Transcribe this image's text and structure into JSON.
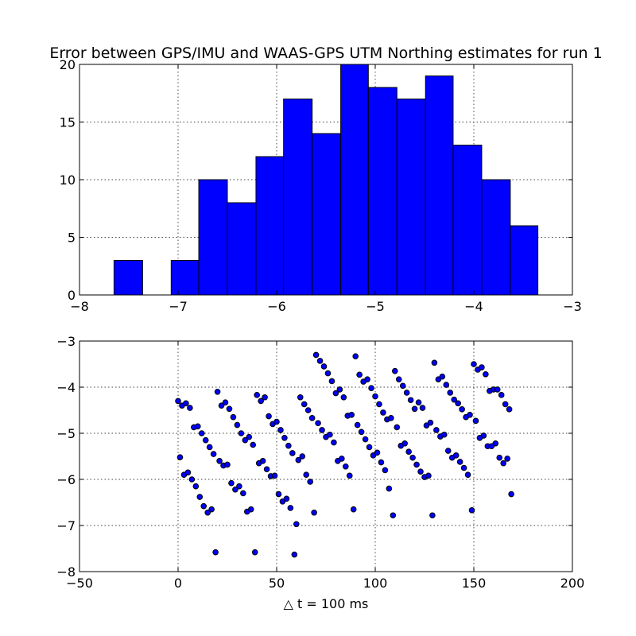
{
  "colors": {
    "accent": "#0000ff",
    "background": "#ffffff",
    "frame": "#000000"
  },
  "chart_data": [
    {
      "type": "bar",
      "title": "Error between GPS/IMU and WAAS-GPS UTM Northing estimates for run 1",
      "xlabel": "",
      "ylabel": "",
      "xlim": [
        -8,
        -3
      ],
      "ylim": [
        0,
        20
      ],
      "xticks": [
        "−8",
        "−7",
        "−6",
        "−5",
        "−4",
        "−3"
      ],
      "yticks": [
        "0",
        "5",
        "10",
        "15",
        "20"
      ],
      "grid": true,
      "bin_edges": [
        -7.65,
        -7.36,
        -7.07,
        -6.79,
        -6.5,
        -6.21,
        -5.93,
        -5.64,
        -5.35,
        -5.07,
        -4.78,
        -4.49,
        -4.21,
        -3.92,
        -3.63,
        -3.35
      ],
      "values": [
        3,
        0,
        3,
        10,
        8,
        12,
        17,
        14,
        20,
        18,
        17,
        19,
        13,
        10,
        6
      ]
    },
    {
      "type": "scatter",
      "title": "",
      "xlabel": "△ t = 100 ms",
      "ylabel": "",
      "xlim": [
        -50,
        200
      ],
      "ylim": [
        -8,
        -3
      ],
      "xticks": [
        "−50",
        "0",
        "50",
        "100",
        "150",
        "200"
      ],
      "yticks": [
        "−8",
        "−7",
        "−6",
        "−5",
        "−4",
        "−3"
      ],
      "grid": true,
      "points": [
        [
          0,
          -4.3
        ],
        [
          1,
          -5.52
        ],
        [
          2,
          -4.4
        ],
        [
          3,
          -5.9
        ],
        [
          4,
          -4.35
        ],
        [
          5,
          -5.85
        ],
        [
          6,
          -4.45
        ],
        [
          7,
          -6.0
        ],
        [
          8,
          -4.87
        ],
        [
          9,
          -6.15
        ],
        [
          10,
          -4.85
        ],
        [
          11,
          -6.38
        ],
        [
          12,
          -5.0
        ],
        [
          13,
          -6.58
        ],
        [
          14,
          -5.15
        ],
        [
          15,
          -6.72
        ],
        [
          16,
          -5.3
        ],
        [
          17,
          -6.65
        ],
        [
          18,
          -5.45
        ],
        [
          19,
          -7.58
        ],
        [
          20,
          -4.1
        ],
        [
          21,
          -5.6
        ],
        [
          22,
          -4.4
        ],
        [
          23,
          -5.7
        ],
        [
          24,
          -4.33
        ],
        [
          25,
          -5.68
        ],
        [
          26,
          -4.47
        ],
        [
          27,
          -6.08
        ],
        [
          28,
          -4.65
        ],
        [
          29,
          -6.22
        ],
        [
          30,
          -4.82
        ],
        [
          31,
          -6.15
        ],
        [
          32,
          -5.0
        ],
        [
          33,
          -6.3
        ],
        [
          34,
          -5.15
        ],
        [
          35,
          -6.7
        ],
        [
          36,
          -5.08
        ],
        [
          37,
          -6.65
        ],
        [
          38,
          -5.25
        ],
        [
          39,
          -7.58
        ],
        [
          40,
          -4.17
        ],
        [
          41,
          -5.65
        ],
        [
          42,
          -4.3
        ],
        [
          43,
          -5.6
        ],
        [
          44,
          -4.22
        ],
        [
          45,
          -5.78
        ],
        [
          46,
          -4.63
        ],
        [
          47,
          -5.93
        ],
        [
          48,
          -4.8
        ],
        [
          49,
          -5.92
        ],
        [
          50,
          -4.75
        ],
        [
          51,
          -6.32
        ],
        [
          52,
          -4.93
        ],
        [
          53,
          -6.48
        ],
        [
          54,
          -5.1
        ],
        [
          55,
          -6.42
        ],
        [
          56,
          -5.27
        ],
        [
          57,
          -6.62
        ],
        [
          58,
          -5.43
        ],
        [
          59,
          -7.63
        ],
        [
          60,
          -6.97
        ],
        [
          61,
          -5.58
        ],
        [
          62,
          -4.22
        ],
        [
          63,
          -5.5
        ],
        [
          64,
          -4.37
        ],
        [
          65,
          -5.9
        ],
        [
          66,
          -4.5
        ],
        [
          67,
          -6.05
        ],
        [
          68,
          -4.67
        ],
        [
          69,
          -6.72
        ],
        [
          70,
          -3.3
        ],
        [
          71,
          -4.78
        ],
        [
          72,
          -3.43
        ],
        [
          73,
          -4.93
        ],
        [
          74,
          -3.55
        ],
        [
          75,
          -5.08
        ],
        [
          76,
          -3.7
        ],
        [
          77,
          -5.03
        ],
        [
          78,
          -3.87
        ],
        [
          79,
          -5.2
        ],
        [
          80,
          -4.13
        ],
        [
          81,
          -5.6
        ],
        [
          82,
          -4.05
        ],
        [
          83,
          -5.55
        ],
        [
          84,
          -4.22
        ],
        [
          85,
          -5.72
        ],
        [
          86,
          -4.62
        ],
        [
          87,
          -5.92
        ],
        [
          88,
          -4.6
        ],
        [
          89,
          -6.65
        ],
        [
          90,
          -3.33
        ],
        [
          91,
          -4.82
        ],
        [
          92,
          -3.73
        ],
        [
          93,
          -4.97
        ],
        [
          94,
          -3.88
        ],
        [
          95,
          -5.13
        ],
        [
          96,
          -3.83
        ],
        [
          97,
          -5.3
        ],
        [
          98,
          -4.02
        ],
        [
          99,
          -5.48
        ],
        [
          100,
          -4.2
        ],
        [
          101,
          -5.42
        ],
        [
          102,
          -4.37
        ],
        [
          103,
          -5.63
        ],
        [
          104,
          -4.55
        ],
        [
          105,
          -5.8
        ],
        [
          106,
          -4.7
        ],
        [
          107,
          -6.2
        ],
        [
          108,
          -4.67
        ],
        [
          109,
          -6.78
        ],
        [
          110,
          -3.65
        ],
        [
          111,
          -4.87
        ],
        [
          112,
          -3.83
        ],
        [
          113,
          -5.27
        ],
        [
          114,
          -3.97
        ],
        [
          115,
          -5.22
        ],
        [
          116,
          -4.12
        ],
        [
          117,
          -5.4
        ],
        [
          118,
          -4.28
        ],
        [
          119,
          -5.53
        ],
        [
          120,
          -4.47
        ],
        [
          121,
          -5.68
        ],
        [
          122,
          -4.33
        ],
        [
          123,
          -5.83
        ],
        [
          124,
          -4.45
        ],
        [
          125,
          -5.95
        ],
        [
          126,
          -4.83
        ],
        [
          127,
          -5.92
        ],
        [
          128,
          -4.77
        ],
        [
          129,
          -6.78
        ],
        [
          130,
          -3.47
        ],
        [
          131,
          -4.93
        ],
        [
          132,
          -3.83
        ],
        [
          133,
          -5.07
        ],
        [
          134,
          -3.77
        ],
        [
          135,
          -5.03
        ],
        [
          136,
          -3.95
        ],
        [
          137,
          -5.38
        ],
        [
          138,
          -4.12
        ],
        [
          139,
          -5.53
        ],
        [
          140,
          -4.27
        ],
        [
          141,
          -5.48
        ],
        [
          142,
          -4.35
        ],
        [
          143,
          -5.62
        ],
        [
          144,
          -4.48
        ],
        [
          145,
          -5.75
        ],
        [
          146,
          -4.65
        ],
        [
          147,
          -5.9
        ],
        [
          148,
          -4.6
        ],
        [
          149,
          -6.67
        ],
        [
          150,
          -3.5
        ],
        [
          151,
          -4.73
        ],
        [
          152,
          -3.62
        ],
        [
          153,
          -5.1
        ],
        [
          154,
          -3.57
        ],
        [
          155,
          -5.05
        ],
        [
          156,
          -3.72
        ],
        [
          157,
          -5.28
        ],
        [
          158,
          -4.08
        ],
        [
          159,
          -5.28
        ],
        [
          160,
          -4.05
        ],
        [
          161,
          -5.22
        ],
        [
          162,
          -4.05
        ],
        [
          163,
          -5.53
        ],
        [
          164,
          -4.17
        ],
        [
          165,
          -5.65
        ],
        [
          166,
          -4.37
        ],
        [
          167,
          -5.55
        ],
        [
          168,
          -4.48
        ],
        [
          169,
          -6.32
        ]
      ]
    }
  ]
}
